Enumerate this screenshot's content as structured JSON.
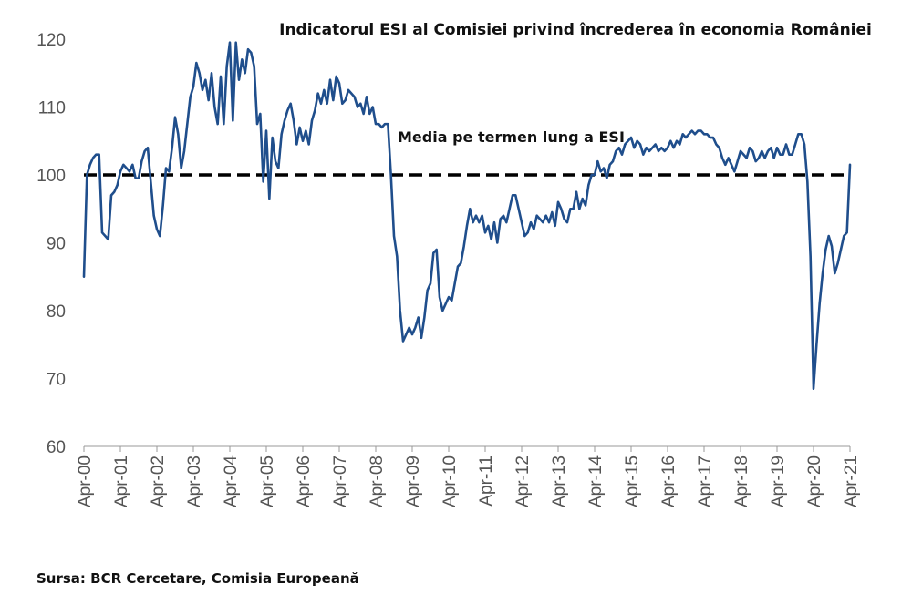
{
  "chart_data": {
    "type": "line",
    "title": "Indicatorul ESI al Comisiei privind încrederea în economia României",
    "xlabel": "",
    "ylabel": "",
    "ylim": [
      60,
      120
    ],
    "yticks": [
      "60",
      "70",
      "80",
      "90",
      "100",
      "110",
      "120"
    ],
    "xticks": [
      "Apr-00",
      "Apr-01",
      "Apr-02",
      "Apr-03",
      "Apr-04",
      "Apr-05",
      "Apr-06",
      "Apr-07",
      "Apr-08",
      "Apr-09",
      "Apr-10",
      "Apr-11",
      "Apr-12",
      "Apr-13",
      "Apr-14",
      "Apr-15",
      "Apr-16",
      "Apr-17",
      "Apr-18",
      "Apr-19",
      "Apr-20",
      "Apr-21"
    ],
    "grid": false,
    "legend": "none",
    "line_color": "#1f4e8c",
    "reference_line": {
      "value": 100,
      "label": "Media pe termen lung a ESI",
      "color": "#000000",
      "style": "dashed"
    },
    "series": [
      {
        "points": [
          [
            "2000-04",
            85
          ],
          [
            "2000-05",
            100
          ],
          [
            "2000-06",
            101.5
          ],
          [
            "2000-07",
            102.5
          ],
          [
            "2000-08",
            103
          ],
          [
            "2000-09",
            103
          ],
          [
            "2000-10",
            91.5
          ],
          [
            "2000-11",
            91
          ],
          [
            "2000-12",
            90.5
          ],
          [
            "2001-01",
            97
          ],
          [
            "2001-02",
            97.5
          ],
          [
            "2001-03",
            98.5
          ],
          [
            "2001-04",
            100.5
          ],
          [
            "2001-05",
            101.5
          ],
          [
            "2001-06",
            101
          ],
          [
            "2001-07",
            100.5
          ],
          [
            "2001-08",
            101.5
          ],
          [
            "2001-09",
            99.5
          ],
          [
            "2001-10",
            99.5
          ],
          [
            "2001-11",
            102
          ],
          [
            "2001-12",
            103.5
          ],
          [
            "2002-01",
            104
          ],
          [
            "2002-02",
            99
          ],
          [
            "2002-03",
            94
          ],
          [
            "2002-04",
            92
          ],
          [
            "2002-05",
            91
          ],
          [
            "2002-06",
            95.5
          ],
          [
            "2002-07",
            101
          ],
          [
            "2002-08",
            100.5
          ],
          [
            "2002-09",
            104
          ],
          [
            "2002-10",
            108.5
          ],
          [
            "2002-11",
            106
          ],
          [
            "2002-12",
            101
          ],
          [
            "2003-01",
            103.5
          ],
          [
            "2003-02",
            107.5
          ],
          [
            "2003-03",
            111.5
          ],
          [
            "2003-04",
            113
          ],
          [
            "2003-05",
            116.5
          ],
          [
            "2003-06",
            115
          ],
          [
            "2003-07",
            112.5
          ],
          [
            "2003-08",
            114
          ],
          [
            "2003-09",
            111
          ],
          [
            "2003-10",
            115
          ],
          [
            "2003-11",
            110
          ],
          [
            "2003-12",
            107.5
          ],
          [
            "2004-01",
            114.5
          ],
          [
            "2004-02",
            107.5
          ],
          [
            "2004-03",
            116
          ],
          [
            "2004-04",
            119.5
          ],
          [
            "2004-05",
            108
          ],
          [
            "2004-06",
            119.5
          ],
          [
            "2004-07",
            114
          ],
          [
            "2004-08",
            117
          ],
          [
            "2004-09",
            115
          ],
          [
            "2004-10",
            118.5
          ],
          [
            "2004-11",
            118
          ],
          [
            "2004-12",
            116
          ],
          [
            "2005-01",
            107.5
          ],
          [
            "2005-02",
            109
          ],
          [
            "2005-03",
            99
          ],
          [
            "2005-04",
            106.5
          ],
          [
            "2005-05",
            96.5
          ],
          [
            "2005-06",
            105.5
          ],
          [
            "2005-07",
            102
          ],
          [
            "2005-08",
            101
          ],
          [
            "2005-09",
            106
          ],
          [
            "2005-10",
            108
          ],
          [
            "2005-11",
            109.5
          ],
          [
            "2005-12",
            110.5
          ],
          [
            "2006-01",
            108
          ],
          [
            "2006-02",
            104.5
          ],
          [
            "2006-03",
            107
          ],
          [
            "2006-04",
            105
          ],
          [
            "2006-05",
            106.5
          ],
          [
            "2006-06",
            104.5
          ],
          [
            "2006-07",
            108
          ],
          [
            "2006-08",
            109.5
          ],
          [
            "2006-09",
            112
          ],
          [
            "2006-10",
            110.5
          ],
          [
            "2006-11",
            112.5
          ],
          [
            "2006-12",
            110.5
          ],
          [
            "2007-01",
            114
          ],
          [
            "2007-02",
            111
          ],
          [
            "2007-03",
            114.5
          ],
          [
            "2007-04",
            113.5
          ],
          [
            "2007-05",
            110.5
          ],
          [
            "2007-06",
            111
          ],
          [
            "2007-07",
            112.5
          ],
          [
            "2007-08",
            112
          ],
          [
            "2007-09",
            111.5
          ],
          [
            "2007-10",
            110
          ],
          [
            "2007-11",
            110.5
          ],
          [
            "2007-12",
            109
          ],
          [
            "2008-01",
            111.5
          ],
          [
            "2008-02",
            109
          ],
          [
            "2008-03",
            110
          ],
          [
            "2008-04",
            107.5
          ],
          [
            "2008-05",
            107.5
          ],
          [
            "2008-06",
            107
          ],
          [
            "2008-07",
            107.5
          ],
          [
            "2008-08",
            107.5
          ],
          [
            "2008-09",
            100
          ],
          [
            "2008-10",
            91
          ],
          [
            "2008-11",
            88
          ],
          [
            "2008-12",
            80
          ],
          [
            "2009-01",
            75.5
          ],
          [
            "2009-02",
            76.5
          ],
          [
            "2009-03",
            77.5
          ],
          [
            "2009-04",
            76.5
          ],
          [
            "2009-05",
            77.5
          ],
          [
            "2009-06",
            79
          ],
          [
            "2009-07",
            76
          ],
          [
            "2009-08",
            79
          ],
          [
            "2009-09",
            83
          ],
          [
            "2009-10",
            84
          ],
          [
            "2009-11",
            88.5
          ],
          [
            "2009-12",
            89
          ],
          [
            "2010-01",
            82
          ],
          [
            "2010-02",
            80
          ],
          [
            "2010-03",
            81
          ],
          [
            "2010-04",
            82
          ],
          [
            "2010-05",
            81.5
          ],
          [
            "2010-06",
            84
          ],
          [
            "2010-07",
            86.5
          ],
          [
            "2010-08",
            87
          ],
          [
            "2010-09",
            89.5
          ],
          [
            "2010-10",
            92.5
          ],
          [
            "2010-11",
            95
          ],
          [
            "2010-12",
            93
          ],
          [
            "2011-01",
            94
          ],
          [
            "2011-02",
            93
          ],
          [
            "2011-03",
            94
          ],
          [
            "2011-04",
            91.5
          ],
          [
            "2011-05",
            92.5
          ],
          [
            "2011-06",
            90.5
          ],
          [
            "2011-07",
            93
          ],
          [
            "2011-08",
            90
          ],
          [
            "2011-09",
            93.5
          ],
          [
            "2011-10",
            94
          ],
          [
            "2011-11",
            93
          ],
          [
            "2011-12",
            95
          ],
          [
            "2012-01",
            97
          ],
          [
            "2012-02",
            97
          ],
          [
            "2012-03",
            95
          ],
          [
            "2012-04",
            93
          ],
          [
            "2012-05",
            91
          ],
          [
            "2012-06",
            91.5
          ],
          [
            "2012-07",
            93
          ],
          [
            "2012-08",
            92
          ],
          [
            "2012-09",
            94
          ],
          [
            "2012-10",
            93.5
          ],
          [
            "2012-11",
            93
          ],
          [
            "2012-12",
            94
          ],
          [
            "2013-01",
            93
          ],
          [
            "2013-02",
            94.5
          ],
          [
            "2013-03",
            92.5
          ],
          [
            "2013-04",
            96
          ],
          [
            "2013-05",
            95
          ],
          [
            "2013-06",
            93.5
          ],
          [
            "2013-07",
            93
          ],
          [
            "2013-08",
            95
          ],
          [
            "2013-09",
            95
          ],
          [
            "2013-10",
            97.5
          ],
          [
            "2013-11",
            95
          ],
          [
            "2013-12",
            96.5
          ],
          [
            "2014-01",
            95.5
          ],
          [
            "2014-02",
            98.5
          ],
          [
            "2014-03",
            100
          ],
          [
            "2014-04",
            100
          ],
          [
            "2014-05",
            102
          ],
          [
            "2014-06",
            100.5
          ],
          [
            "2014-07",
            101
          ],
          [
            "2014-08",
            99.5
          ],
          [
            "2014-09",
            101.5
          ],
          [
            "2014-10",
            102
          ],
          [
            "2014-11",
            103.5
          ],
          [
            "2014-12",
            104
          ],
          [
            "2015-01",
            103
          ],
          [
            "2015-02",
            104.5
          ],
          [
            "2015-03",
            105
          ],
          [
            "2015-04",
            105.5
          ],
          [
            "2015-05",
            104
          ],
          [
            "2015-06",
            105
          ],
          [
            "2015-07",
            104.5
          ],
          [
            "2015-08",
            103
          ],
          [
            "2015-09",
            104
          ],
          [
            "2015-10",
            103.5
          ],
          [
            "2015-11",
            104
          ],
          [
            "2015-12",
            104.5
          ],
          [
            "2016-01",
            103.5
          ],
          [
            "2016-02",
            104
          ],
          [
            "2016-03",
            103.5
          ],
          [
            "2016-04",
            104
          ],
          [
            "2016-05",
            105
          ],
          [
            "2016-06",
            104
          ],
          [
            "2016-07",
            105
          ],
          [
            "2016-08",
            104.5
          ],
          [
            "2016-09",
            106
          ],
          [
            "2016-10",
            105.5
          ],
          [
            "2016-11",
            106
          ],
          [
            "2016-12",
            106.5
          ],
          [
            "2017-01",
            106
          ],
          [
            "2017-02",
            106.5
          ],
          [
            "2017-03",
            106.5
          ],
          [
            "2017-04",
            106
          ],
          [
            "2017-05",
            106
          ],
          [
            "2017-06",
            105.5
          ],
          [
            "2017-07",
            105.5
          ],
          [
            "2017-08",
            104.5
          ],
          [
            "2017-09",
            104
          ],
          [
            "2017-10",
            102.5
          ],
          [
            "2017-11",
            101.5
          ],
          [
            "2017-12",
            102.5
          ],
          [
            "2018-01",
            101.5
          ],
          [
            "2018-02",
            100.5
          ],
          [
            "2018-03",
            102
          ],
          [
            "2018-04",
            103.5
          ],
          [
            "2018-05",
            103
          ],
          [
            "2018-06",
            102.5
          ],
          [
            "2018-07",
            104
          ],
          [
            "2018-08",
            103.5
          ],
          [
            "2018-09",
            102
          ],
          [
            "2018-10",
            102.5
          ],
          [
            "2018-11",
            103.5
          ],
          [
            "2018-12",
            102.5
          ],
          [
            "2019-01",
            103.5
          ],
          [
            "2019-02",
            104
          ],
          [
            "2019-03",
            102.5
          ],
          [
            "2019-04",
            104
          ],
          [
            "2019-05",
            103
          ],
          [
            "2019-06",
            103
          ],
          [
            "2019-07",
            104.5
          ],
          [
            "2019-08",
            103
          ],
          [
            "2019-09",
            103
          ],
          [
            "2019-10",
            104.5
          ],
          [
            "2019-11",
            106
          ],
          [
            "2019-12",
            106
          ],
          [
            "2020-01",
            104.5
          ],
          [
            "2020-02",
            99
          ],
          [
            "2020-03",
            88
          ],
          [
            "2020-04",
            68.5
          ],
          [
            "2020-05",
            75
          ],
          [
            "2020-06",
            81
          ],
          [
            "2020-07",
            85.5
          ],
          [
            "2020-08",
            89
          ],
          [
            "2020-09",
            91
          ],
          [
            "2020-10",
            89.5
          ],
          [
            "2020-11",
            85.5
          ],
          [
            "2020-12",
            87
          ],
          [
            "2021-01",
            89
          ],
          [
            "2021-02",
            91
          ],
          [
            "2021-03",
            91.5
          ],
          [
            "2021-04",
            101.5
          ]
        ]
      }
    ]
  },
  "source_note": "Sursa: BCR Cercetare, Comisia Europeană"
}
